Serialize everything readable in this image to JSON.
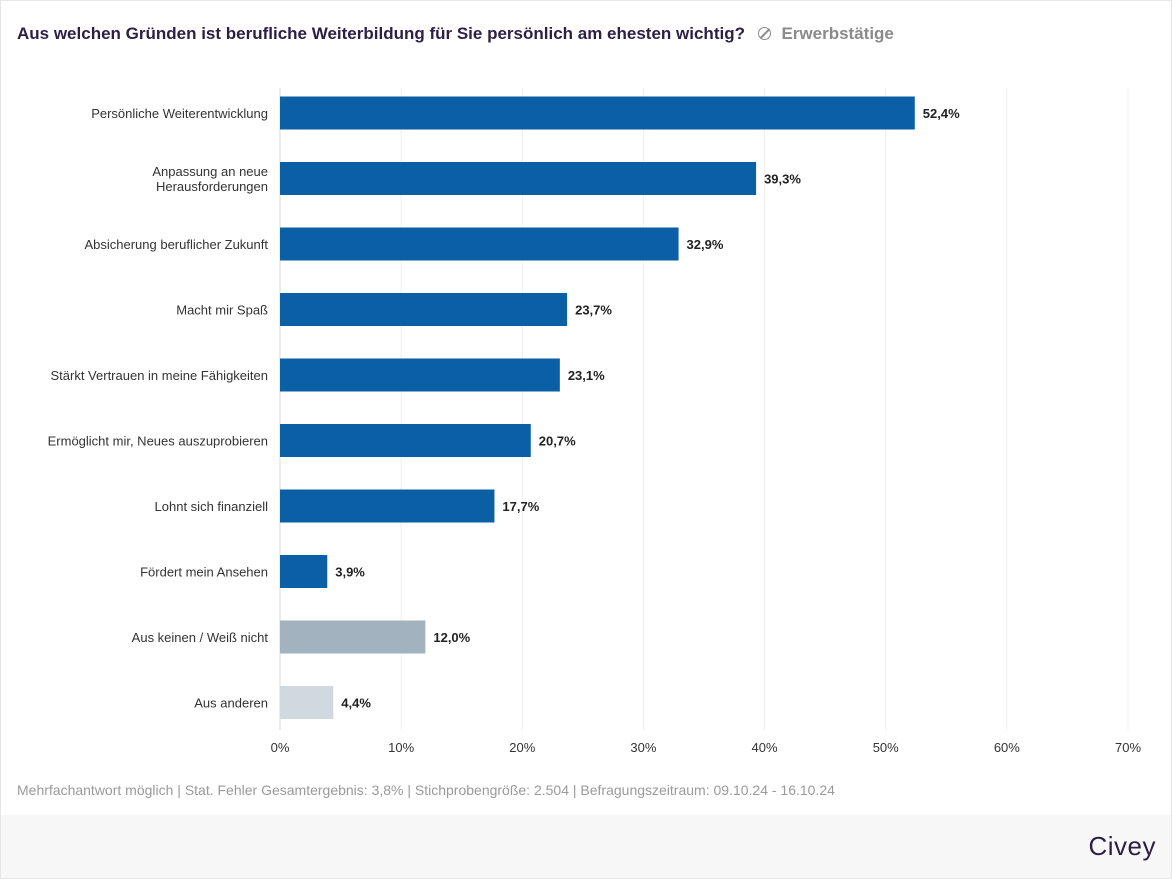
{
  "header": {
    "title": "Aus welchen Gründen ist berufliche Weiterbildung für Sie persönlich am ehesten wichtig?",
    "filter_label": "Erwerbstätige",
    "filter_icon": "filter-off-icon"
  },
  "footer": {
    "note": "Mehrfachantwort möglich | Stat. Fehler Gesamtergebnis: 3,8% | Stichprobengröße: 2.504 | Befragungszeitraum: 09.10.24 - 16.10.24",
    "logo": "Civey"
  },
  "chart_data": {
    "type": "bar",
    "orientation": "horizontal",
    "title": "Aus welchen Gründen ist berufliche Weiterbildung für Sie persönlich am ehesten wichtig?",
    "categories": [
      [
        "Persönliche Weiterentwicklung"
      ],
      [
        "Anpassung an neue",
        "Herausforderungen"
      ],
      [
        "Absicherung beruflicher Zukunft"
      ],
      [
        "Macht mir Spaß"
      ],
      [
        "Stärkt Vertrauen in meine Fähigkeiten"
      ],
      [
        "Ermöglicht mir, Neues auszuprobieren"
      ],
      [
        "Lohnt sich finanziell"
      ],
      [
        "Fördert mein Ansehen"
      ],
      [
        "Aus keinen / Weiß nicht"
      ],
      [
        "Aus anderen"
      ]
    ],
    "values": [
      52.4,
      39.3,
      32.9,
      23.7,
      23.1,
      20.7,
      17.7,
      3.9,
      12.0,
      4.4
    ],
    "value_labels": [
      "52,4%",
      "39,3%",
      "32,9%",
      "23,7%",
      "23,1%",
      "20,7%",
      "17,7%",
      "3,9%",
      "12,0%",
      "4,4%"
    ],
    "bar_colors": [
      "#0b5fa5",
      "#0b5fa5",
      "#0b5fa5",
      "#0b5fa5",
      "#0b5fa5",
      "#0b5fa5",
      "#0b5fa5",
      "#0b5fa5",
      "#a2b2bf",
      "#d0d9e0"
    ],
    "xlim": [
      0,
      70
    ],
    "xticks": [
      0,
      10,
      20,
      30,
      40,
      50,
      60,
      70
    ],
    "xtick_labels": [
      "0%",
      "10%",
      "20%",
      "30%",
      "40%",
      "50%",
      "60%",
      "70%"
    ],
    "grid": true,
    "xlabel": "",
    "ylabel": ""
  }
}
